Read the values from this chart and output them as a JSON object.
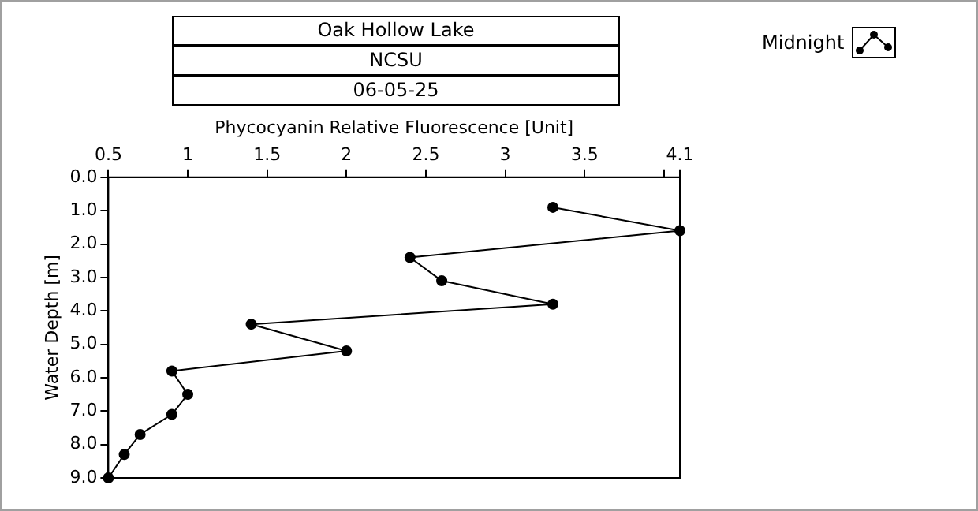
{
  "chart_data": {
    "type": "line",
    "title": "Oak Hollow Lake",
    "subtitle": "NCSU",
    "annotations": [
      "06-05-25"
    ],
    "xlabel": "Phycocyanin Relative Fluorescence [Unit]",
    "ylabel": "Water Depth [m]",
    "xlim": [
      0.5,
      4.1
    ],
    "xticks": [
      0.5,
      1,
      1.5,
      2,
      2.5,
      3,
      3.5,
      {
        "value": 4,
        "label": null
      },
      4.1
    ],
    "ylim": [
      9,
      0
    ],
    "yticks": [
      {
        "value": 0,
        "label": "0.0"
      },
      {
        "value": 1,
        "label": "1.0"
      },
      {
        "value": 2,
        "label": "2.0"
      },
      {
        "value": 3,
        "label": "3.0"
      },
      {
        "value": 4,
        "label": "4.0"
      },
      {
        "value": 5,
        "label": "5.0"
      },
      {
        "value": 6,
        "label": "6.0"
      },
      {
        "value": 7,
        "label": "7.0"
      },
      {
        "value": 8,
        "label": "8.0"
      },
      {
        "value": 9,
        "label": "9.0"
      }
    ],
    "x": [
      3.3,
      4.1,
      2.4,
      2.6,
      3.3,
      1.4,
      2.0,
      0.9,
      1.0,
      0.9,
      0.7,
      0.6,
      0.5
    ],
    "series": [
      {
        "name": "Midnight",
        "color": "#000000",
        "values": [
          0.9,
          1.6,
          2.4,
          3.1,
          3.8,
          4.4,
          5.2,
          5.8,
          6.5,
          7.1,
          7.7,
          8.3,
          9.0
        ]
      }
    ],
    "grid": false,
    "legend": "top right",
    "marker": "circle",
    "line_style": "solid"
  }
}
